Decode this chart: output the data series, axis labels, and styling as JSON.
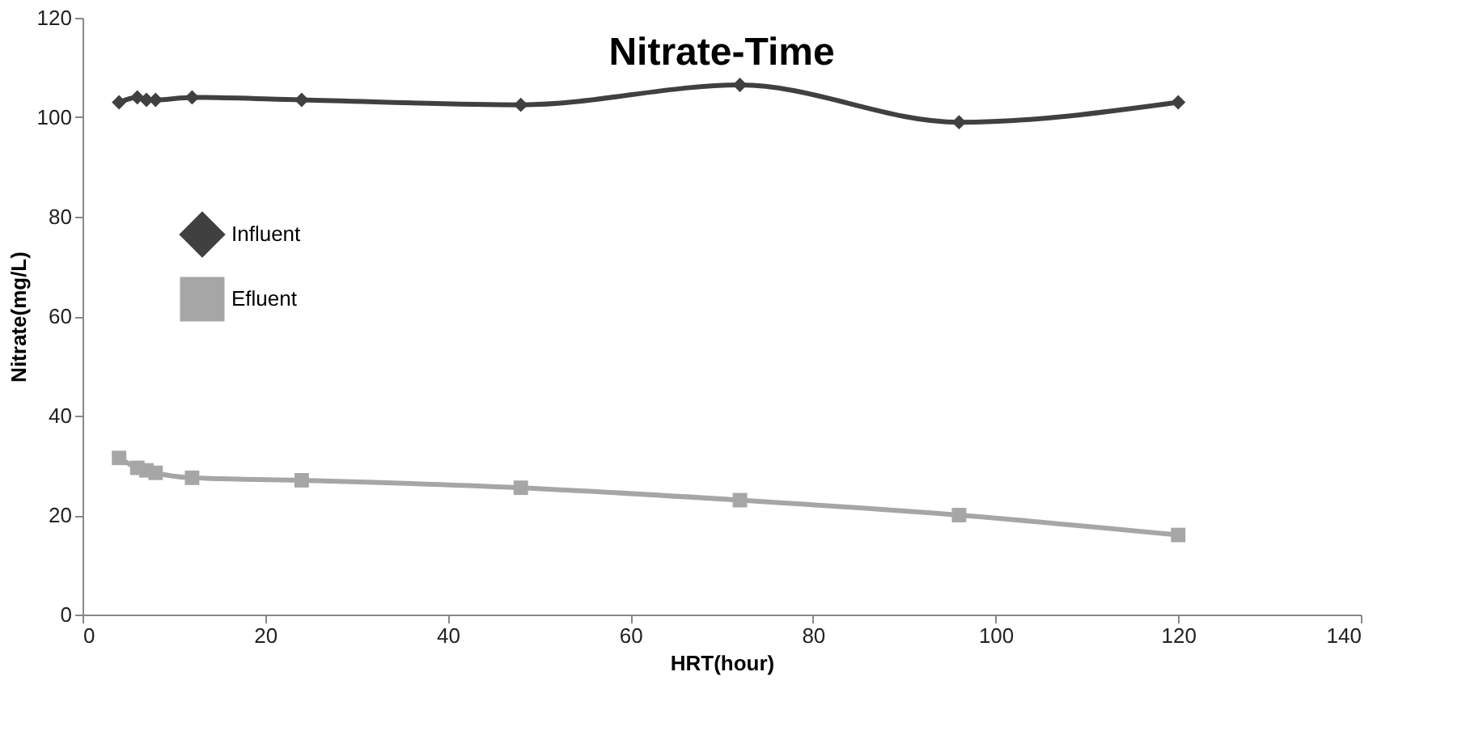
{
  "chart_data": {
    "type": "line",
    "title": "Nitrate-Time",
    "xlabel": "HRT(hour)",
    "ylabel": "Nitrate(mg/L)",
    "x": [
      4,
      6,
      7,
      8,
      12,
      24,
      48,
      72,
      96,
      120
    ],
    "series": [
      {
        "name": "Influent",
        "color": "#404040",
        "marker": "diamond",
        "values": [
          103,
          104,
          103.5,
          103.5,
          104,
          103.5,
          102.5,
          106.5,
          99,
          103
        ]
      },
      {
        "name": "Efluent",
        "color": "#a6a6a6",
        "marker": "square",
        "values": [
          31.5,
          29.5,
          29,
          28.5,
          27.5,
          27,
          25.5,
          23,
          20,
          16
        ]
      }
    ],
    "xlim": [
      0,
      140
    ],
    "xticks": [
      0,
      20,
      40,
      60,
      80,
      100,
      120,
      140
    ],
    "ylim": [
      0,
      120
    ],
    "yticks": [
      0,
      20,
      40,
      60,
      80,
      100,
      120
    ],
    "grid": false,
    "legend": "left"
  }
}
